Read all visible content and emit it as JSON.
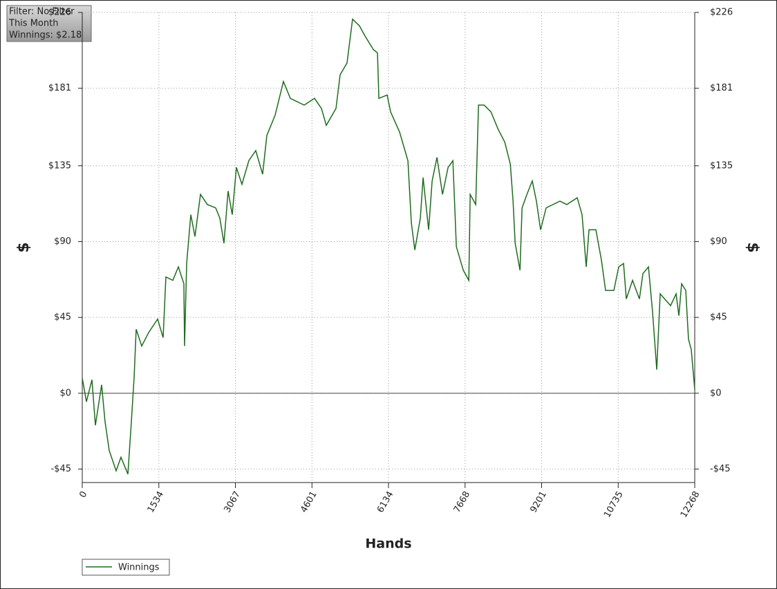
{
  "chart_data": {
    "type": "line",
    "info_box": [
      "Filter: No Filter",
      "This Month",
      "Winnings: $2.18"
    ],
    "xlabel": "Hands",
    "ylabel": "$",
    "y2label": "$",
    "x": [
      0,
      83,
      194,
      263,
      388,
      457,
      540,
      678,
      775,
      914,
      983,
      1038,
      1080,
      1191,
      1329,
      1509,
      1620,
      1675,
      1814,
      1925,
      2035,
      2049,
      2091,
      2174,
      2257,
      2368,
      2506,
      2672,
      2755,
      2838,
      2921,
      3004,
      3087,
      3198,
      3336,
      3475,
      3613,
      3697,
      3863,
      4029,
      4168,
      4445,
      4652,
      4791,
      4888,
      5082,
      5165,
      5303,
      5414,
      5553,
      5664,
      5830,
      5913,
      5941,
      6107,
      6176,
      6356,
      6523,
      6592,
      6661,
      6772,
      6827,
      6938,
      7008,
      7105,
      7216,
      7327,
      7424,
      7493,
      7632,
      7743,
      7770,
      7881,
      7937,
      8048,
      8186,
      8325,
      8463,
      8574,
      8629,
      8671,
      8768,
      8809,
      8906,
      9014,
      9097,
      9180,
      9291,
      9568,
      9706,
      9914,
      10011,
      10094,
      10150,
      10288,
      10399,
      10482,
      10648,
      10745,
      10842,
      10897,
      11022,
      11160,
      11230,
      11341,
      11424,
      11507,
      11576,
      11784,
      11895,
      11950,
      12005,
      12088,
      12143,
      12198,
      12268
    ],
    "series": [
      {
        "name": "Winnings",
        "color": "#1e6b1e",
        "values": [
          9,
          -5,
          8,
          -19,
          5,
          -17,
          -34,
          -46,
          -38,
          -48,
          -17,
          9,
          38,
          28,
          36,
          44,
          33,
          69,
          67,
          75,
          65,
          28,
          77,
          106,
          93,
          118,
          112,
          110,
          104,
          89,
          120,
          106,
          134,
          124,
          138,
          144,
          130,
          153,
          165,
          185,
          175,
          171,
          175,
          169,
          159,
          169,
          189,
          196,
          222,
          218,
          212,
          204,
          202,
          175,
          177,
          167,
          155,
          138,
          101,
          85,
          104,
          128,
          97,
          126,
          140,
          118,
          134,
          138,
          87,
          73,
          67,
          118,
          112,
          171,
          171,
          167,
          157,
          149,
          136,
          114,
          89,
          73,
          110,
          118,
          126,
          114,
          97,
          110,
          114,
          112,
          116,
          106,
          75,
          97,
          97,
          79,
          61,
          61,
          75,
          77,
          56,
          67,
          56,
          71,
          75,
          48,
          14,
          59,
          52,
          59,
          46,
          65,
          61,
          32,
          26,
          2.18
        ]
      }
    ],
    "xlim": [
      0,
      12268
    ],
    "xticks": [
      0,
      1534,
      3067,
      4601,
      6134,
      7668,
      9201,
      10735,
      12268
    ],
    "ylim": [
      -53,
      226
    ],
    "yticks": [
      {
        "value": -45,
        "label": "-$45"
      },
      {
        "value": 0,
        "label": "$0"
      },
      {
        "value": 45,
        "label": "$45"
      },
      {
        "value": 90,
        "label": "$90"
      },
      {
        "value": 135,
        "label": "$135"
      },
      {
        "value": 181,
        "label": "$181"
      },
      {
        "value": 226,
        "label": "$226"
      }
    ],
    "grid": true
  }
}
